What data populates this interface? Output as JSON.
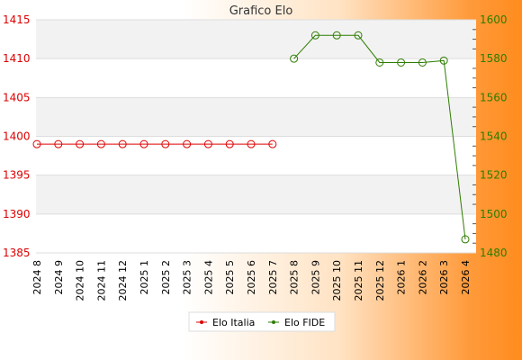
{
  "chart_data": {
    "type": "line",
    "title": "Grafico Elo",
    "categories": [
      "2024 8",
      "2024 9",
      "2024 10",
      "2024 11",
      "2024 12",
      "2025 1",
      "2025 2",
      "2025 3",
      "2025 4",
      "2025 5",
      "2025 6",
      "2025 7",
      "2025 8",
      "2025 9",
      "2025 10",
      "2025 11",
      "2025 12",
      "2026 1",
      "2026 2",
      "2026 3",
      "2026 4"
    ],
    "y_left": {
      "range": [
        1385,
        1415
      ],
      "ticks": [
        1385,
        1390,
        1395,
        1400,
        1405,
        1410,
        1415
      ],
      "color": "#dd0000"
    },
    "y_right": {
      "range": [
        1480,
        1600
      ],
      "ticks": [
        1480,
        1500,
        1520,
        1540,
        1560,
        1580,
        1600
      ],
      "color": "#2d7d00"
    },
    "grid": true,
    "legend": "bottom-center",
    "series": [
      {
        "name": "Elo Italia",
        "axis": "left",
        "color": "#dd0000",
        "values": [
          1399,
          1399,
          1399,
          1399,
          1399,
          1399,
          1399,
          1399,
          1399,
          1399,
          1399,
          1399,
          null,
          null,
          null,
          null,
          null,
          null,
          null,
          null,
          null
        ]
      },
      {
        "name": "Elo FIDE",
        "axis": "right",
        "color": "#2d7d00",
        "values": [
          null,
          null,
          null,
          null,
          null,
          null,
          null,
          null,
          null,
          null,
          null,
          null,
          1580,
          1592,
          1592,
          1592,
          1578,
          1578,
          1578,
          1579,
          1487
        ]
      }
    ]
  }
}
